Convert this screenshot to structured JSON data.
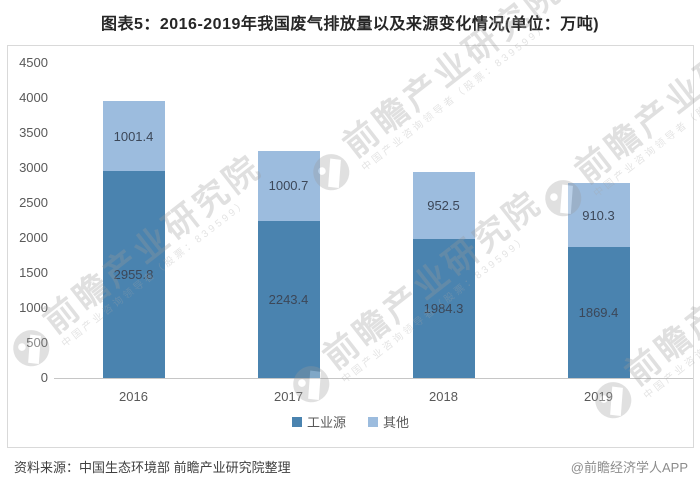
{
  "title": "图表5：2016-2019年我国废气排放量以及来源变化情况(单位：万吨)",
  "chart_data": {
    "type": "bar",
    "stacked": true,
    "title": "图表5：2016-2019年我国废气排放量以及来源变化情况(单位：万吨)",
    "unit": "万吨",
    "categories": [
      "2016",
      "2017",
      "2018",
      "2019"
    ],
    "series": [
      {
        "name": "工业源",
        "color": "#4a83af",
        "values": [
          2955.8,
          2243.4,
          1984.3,
          1869.4
        ]
      },
      {
        "name": "其他",
        "color": "#9cbcde",
        "values": [
          1001.4,
          1000.7,
          952.5,
          910.3
        ]
      }
    ],
    "totals": [
      3957.2,
      3244.1,
      2936.8,
      2779.7
    ],
    "ylim": [
      0,
      4500
    ],
    "ytick_step": 500,
    "grid": false,
    "legend_position": "bottom",
    "value_labels": true
  },
  "watermark": {
    "brand": "前瞻产业研究院",
    "tagline": "中国产业咨询领导者（股票：839599）"
  },
  "footer": {
    "source": "资料来源：中国生态环境部 前瞻产业研究院整理",
    "credit": "@前瞻经济学人APP"
  }
}
